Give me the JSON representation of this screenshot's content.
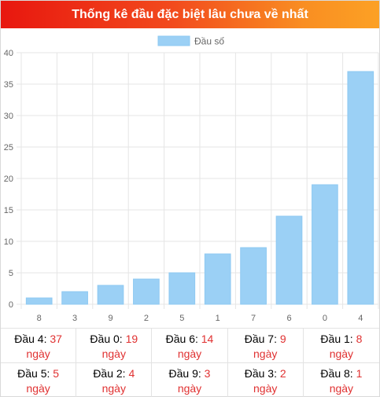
{
  "header": {
    "title": "Thống kê đầu đặc biệt lâu chưa về nhất"
  },
  "chart_data": {
    "type": "bar",
    "title": "Thống kê đầu đặc biệt lâu chưa về nhất",
    "legend": {
      "label": "Đầu số",
      "placement": "top"
    },
    "categories": [
      "8",
      "3",
      "9",
      "2",
      "5",
      "1",
      "7",
      "6",
      "0",
      "4"
    ],
    "series": [
      {
        "name": "Đầu số",
        "values": [
          1,
          2,
          3,
          4,
          5,
          8,
          9,
          14,
          19,
          37
        ]
      }
    ],
    "ylim": [
      0,
      40
    ],
    "yticks": [
      0,
      5,
      10,
      15,
      20,
      25,
      30,
      35,
      40
    ],
    "grid": true,
    "colors": {
      "bar": "#9bd0f5",
      "bar_border": "#8ec9f2",
      "grid": "#e5e5e5",
      "tick_text": "#666666"
    }
  },
  "stats": [
    {
      "label": "Đầu 4:",
      "value": "37",
      "unit": "ngày"
    },
    {
      "label": "Đầu 0:",
      "value": "19",
      "unit": "ngày"
    },
    {
      "label": "Đầu 6:",
      "value": "14",
      "unit": "ngày"
    },
    {
      "label": "Đầu 7:",
      "value": "9",
      "unit": "ngày"
    },
    {
      "label": "Đầu 1:",
      "value": "8",
      "unit": "ngày"
    },
    {
      "label": "Đầu 5:",
      "value": "5",
      "unit": "ngày"
    },
    {
      "label": "Đầu 2:",
      "value": "4",
      "unit": "ngày"
    },
    {
      "label": "Đầu 9:",
      "value": "3",
      "unit": "ngày"
    },
    {
      "label": "Đầu 3:",
      "value": "2",
      "unit": "ngày"
    },
    {
      "label": "Đầu 8:",
      "value": "1",
      "unit": "ngày"
    }
  ]
}
